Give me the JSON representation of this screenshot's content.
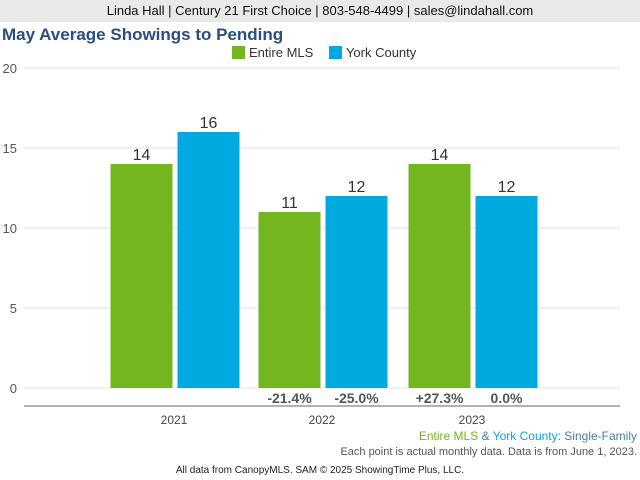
{
  "header": {
    "contact": "Linda Hall | Century 21 First Choice | 803-548-4499 | sales@lindahall.com"
  },
  "colors": {
    "entire_mls": "#74b61f",
    "york_county": "#01a9e1"
  },
  "chart_data": {
    "type": "bar",
    "title": "May Average Showings to Pending",
    "categories": [
      "2021",
      "2022",
      "2023"
    ],
    "series": [
      {
        "name": "Entire MLS",
        "values": [
          14,
          11,
          14
        ],
        "color": "#74b61f"
      },
      {
        "name": "York County",
        "values": [
          16,
          12,
          12
        ],
        "color": "#01a9e1"
      }
    ],
    "change_labels": [
      [
        "",
        ""
      ],
      [
        "-21.4%",
        "-25.0%"
      ],
      [
        "+27.3%",
        "0.0%"
      ]
    ],
    "ylim": [
      0,
      20
    ],
    "yticks": [
      0,
      5,
      10,
      15,
      20
    ],
    "grid": true,
    "legend_position": "top-center"
  },
  "footer": {
    "note_mls": "Entire MLS",
    "note_amp": " & ",
    "note_york": "York County",
    "note_suffix": ": Single-Family",
    "note_data": "Each point is actual monthly data. Data is from June 1, 2023.",
    "credit": "All data from CanopyMLS. SAM © 2025 ShowingTime Plus, LLC."
  }
}
